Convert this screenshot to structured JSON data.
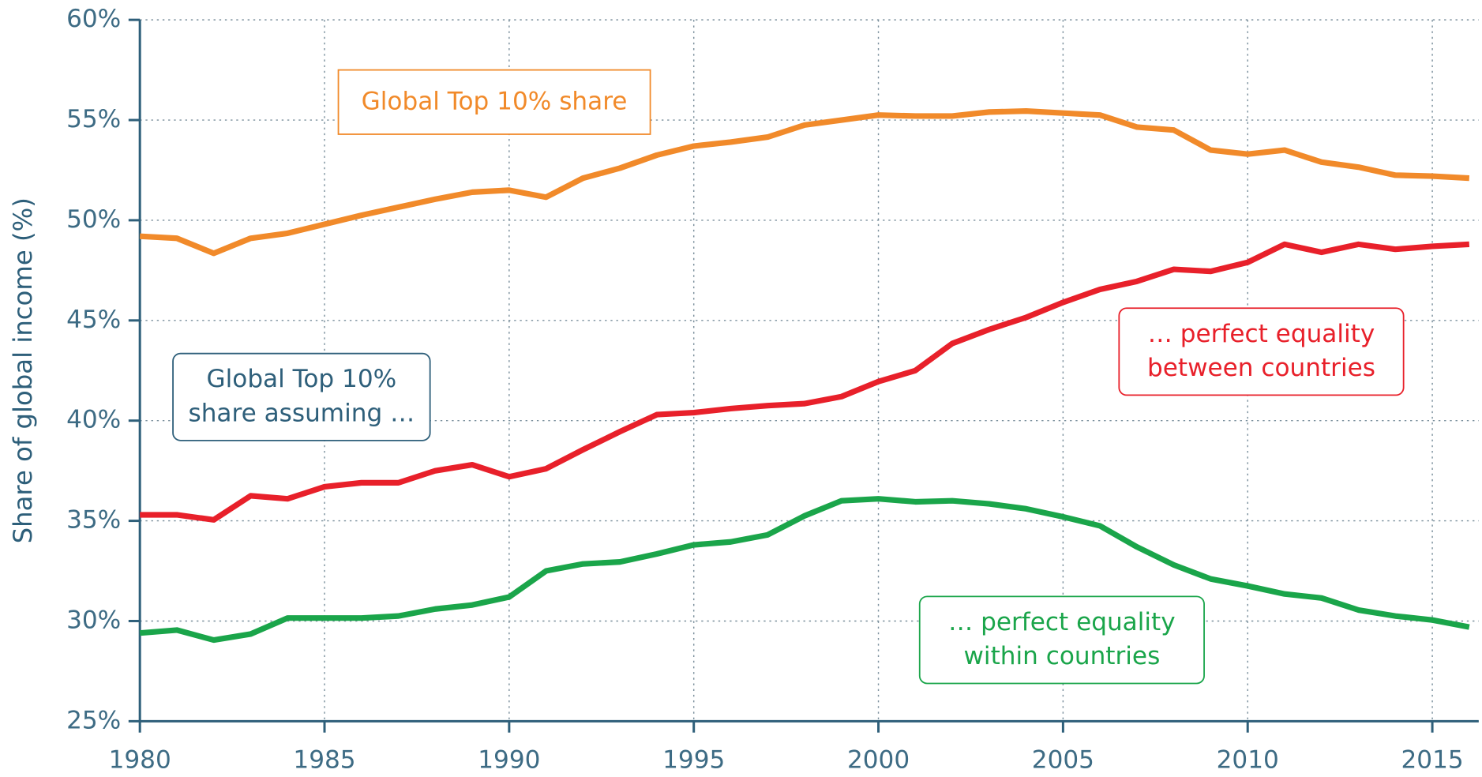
{
  "chart_data": {
    "type": "line",
    "y_label": "Share of global income (%)",
    "x": [
      1980,
      1981,
      1982,
      1983,
      1984,
      1985,
      1986,
      1987,
      1988,
      1989,
      1990,
      1991,
      1992,
      1993,
      1994,
      1995,
      1996,
      1997,
      1998,
      1999,
      2000,
      2001,
      2002,
      2003,
      2004,
      2005,
      2006,
      2007,
      2008,
      2009,
      2010,
      2011,
      2012,
      2013,
      2014,
      2015,
      2016
    ],
    "series": [
      {
        "name": "Global Top 10% share",
        "color": "#f18a2a",
        "values": [
          49.2,
          49.1,
          48.35,
          49.1,
          49.35,
          49.8,
          50.25,
          50.65,
          51.05,
          51.4,
          51.5,
          51.15,
          52.1,
          52.6,
          53.25,
          53.7,
          53.9,
          54.15,
          54.75,
          55.0,
          55.25,
          55.2,
          55.2,
          55.4,
          55.45,
          55.35,
          55.25,
          54.65,
          54.5,
          53.5,
          53.3,
          53.5,
          52.9,
          52.65,
          52.25,
          52.2,
          52.1
        ]
      },
      {
        "name": "… perfect equality between countries",
        "color": "#e8202a",
        "values": [
          35.3,
          35.3,
          35.05,
          36.25,
          36.1,
          36.7,
          36.9,
          36.9,
          37.5,
          37.8,
          37.2,
          37.6,
          38.55,
          39.45,
          40.3,
          40.4,
          40.6,
          40.75,
          40.85,
          41.2,
          41.95,
          42.5,
          43.85,
          44.55,
          45.15,
          45.9,
          46.55,
          46.95,
          47.55,
          47.45,
          47.9,
          48.8,
          48.4,
          48.8,
          48.55,
          48.7,
          48.8
        ]
      },
      {
        "name": "… perfect equality within countries",
        "color": "#1aa54a",
        "values": [
          29.4,
          29.55,
          29.05,
          29.35,
          30.15,
          30.15,
          30.15,
          30.25,
          30.6,
          30.8,
          31.2,
          32.5,
          32.85,
          32.95,
          33.35,
          33.8,
          33.95,
          34.3,
          35.25,
          36.0,
          36.1,
          35.95,
          36.0,
          35.85,
          35.6,
          35.2,
          34.75,
          33.7,
          32.8,
          32.1,
          31.75,
          31.35,
          31.15,
          30.55,
          30.25,
          30.05,
          29.7
        ]
      }
    ],
    "annotations": [
      {
        "lines": [
          "Global Top 10% share"
        ],
        "color": "#f18a2a"
      },
      {
        "lines": [
          "Global Top 10%",
          "share assuming …"
        ],
        "color": "#2e5f7a"
      },
      {
        "lines": [
          "… perfect equality",
          "between countries"
        ],
        "color": "#e8202a"
      },
      {
        "lines": [
          "… perfect equality",
          "within countries"
        ],
        "color": "#1aa54a"
      }
    ],
    "xlim": [
      1980,
      2016
    ],
    "xticks": [
      1980,
      1985,
      1990,
      1995,
      2000,
      2005,
      2010,
      2015
    ],
    "ylim": [
      25,
      60
    ],
    "yticks": [
      {
        "value": 25,
        "label": "25%"
      },
      {
        "value": 30,
        "label": "30%"
      },
      {
        "value": 35,
        "label": "35%"
      },
      {
        "value": 40,
        "label": "40%"
      },
      {
        "value": 45,
        "label": "45%"
      },
      {
        "value": 50,
        "label": "50%"
      },
      {
        "value": 55,
        "label": "55%"
      },
      {
        "value": 60,
        "label": "60%"
      }
    ],
    "grid": true,
    "axis_color": "#2e5f7a"
  }
}
